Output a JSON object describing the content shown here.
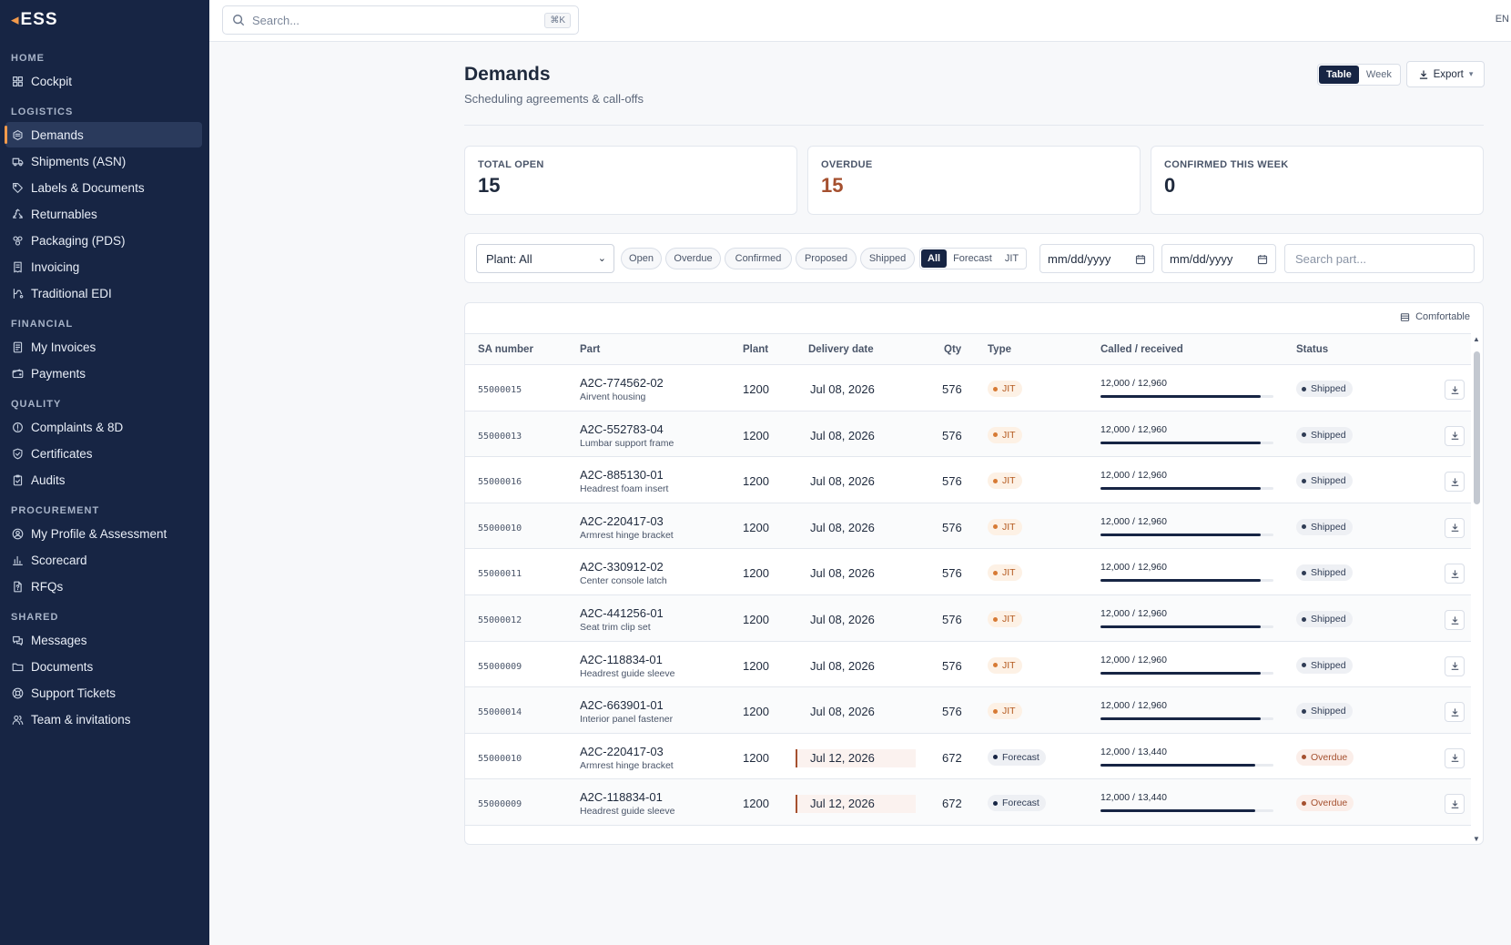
{
  "brand": {
    "logo_text": "ESS",
    "accent": "#f39a4b",
    "sidebar_bg": "#172544"
  },
  "topbar": {
    "search_placeholder": "Search...",
    "shortcut": "⌘K",
    "language": "EN"
  },
  "sidebar": {
    "sections": [
      {
        "label": "HOME",
        "items": [
          {
            "label": "Cockpit",
            "icon": "dashboard-icon"
          }
        ]
      },
      {
        "label": "LOGISTICS",
        "items": [
          {
            "label": "Demands",
            "icon": "demands-icon",
            "active": true
          },
          {
            "label": "Shipments (ASN)",
            "icon": "truck-icon"
          },
          {
            "label": "Labels & Documents",
            "icon": "tag-icon"
          },
          {
            "label": "Returnables",
            "icon": "recycle-icon"
          },
          {
            "label": "Packaging (PDS)",
            "icon": "package-icon"
          },
          {
            "label": "Invoicing",
            "icon": "receipt-icon"
          },
          {
            "label": "Traditional EDI",
            "icon": "edi-icon"
          }
        ]
      },
      {
        "label": "FINANCIAL",
        "items": [
          {
            "label": "My Invoices",
            "icon": "invoice-icon"
          },
          {
            "label": "Payments",
            "icon": "wallet-icon"
          }
        ]
      },
      {
        "label": "QUALITY",
        "items": [
          {
            "label": "Complaints & 8D",
            "icon": "alert-icon"
          },
          {
            "label": "Certificates",
            "icon": "shield-icon"
          },
          {
            "label": "Audits",
            "icon": "clipboard-icon"
          }
        ]
      },
      {
        "label": "PROCUREMENT",
        "items": [
          {
            "label": "My Profile & Assessment",
            "icon": "user-circle-icon"
          },
          {
            "label": "Scorecard",
            "icon": "bar-chart-icon"
          },
          {
            "label": "RFQs",
            "icon": "document-question-icon"
          }
        ]
      },
      {
        "label": "SHARED",
        "items": [
          {
            "label": "Messages",
            "icon": "messages-icon"
          },
          {
            "label": "Documents",
            "icon": "folder-icon"
          },
          {
            "label": "Support Tickets",
            "icon": "lifebuoy-icon"
          },
          {
            "label": "Team & invitations",
            "icon": "team-icon"
          }
        ]
      }
    ]
  },
  "page": {
    "title": "Demands",
    "subtitle": "Scheduling agreements & call-offs",
    "view_options": [
      "Table",
      "Week"
    ],
    "active_view": "Table",
    "export_label": "Export"
  },
  "kpis": [
    {
      "label": "TOTAL OPEN",
      "value": "15"
    },
    {
      "label": "OVERDUE",
      "value": "15"
    },
    {
      "label": "CONFIRMED THIS WEEK",
      "value": "0"
    }
  ],
  "filters": {
    "plant": "Plant: All",
    "status_chips": [
      "Open",
      "Overdue",
      "Confirmed",
      "Proposed",
      "Shipped"
    ],
    "type_options": [
      "All",
      "Forecast",
      "JIT"
    ],
    "active_type": "All",
    "date_from_placeholder": "mm/dd/yyyy",
    "date_to_placeholder": "mm/dd/yyyy",
    "part_search_placeholder": "Search part..."
  },
  "table": {
    "density_label": "Comfortable",
    "columns": [
      "SA number",
      "Part",
      "Plant",
      "Delivery date",
      "Qty",
      "Type",
      "Called / received",
      "Status"
    ],
    "rows": [
      {
        "sa": "55000015",
        "part": "A2C-774562-02",
        "desc": "Airvent housing",
        "plant": "1200",
        "date": "Jul 08, 2026",
        "qty": "576",
        "type": "JIT",
        "called": "12,000 / 12,960",
        "progress": 0.926,
        "status": "Shipped"
      },
      {
        "sa": "55000013",
        "part": "A2C-552783-04",
        "desc": "Lumbar support frame",
        "plant": "1200",
        "date": "Jul 08, 2026",
        "qty": "576",
        "type": "JIT",
        "called": "12,000 / 12,960",
        "progress": 0.926,
        "status": "Shipped"
      },
      {
        "sa": "55000016",
        "part": "A2C-885130-01",
        "desc": "Headrest foam insert",
        "plant": "1200",
        "date": "Jul 08, 2026",
        "qty": "576",
        "type": "JIT",
        "called": "12,000 / 12,960",
        "progress": 0.926,
        "status": "Shipped"
      },
      {
        "sa": "55000010",
        "part": "A2C-220417-03",
        "desc": "Armrest hinge bracket",
        "plant": "1200",
        "date": "Jul 08, 2026",
        "qty": "576",
        "type": "JIT",
        "called": "12,000 / 12,960",
        "progress": 0.926,
        "status": "Shipped"
      },
      {
        "sa": "55000011",
        "part": "A2C-330912-02",
        "desc": "Center console latch",
        "plant": "1200",
        "date": "Jul 08, 2026",
        "qty": "576",
        "type": "JIT",
        "called": "12,000 / 12,960",
        "progress": 0.926,
        "status": "Shipped"
      },
      {
        "sa": "55000012",
        "part": "A2C-441256-01",
        "desc": "Seat trim clip set",
        "plant": "1200",
        "date": "Jul 08, 2026",
        "qty": "576",
        "type": "JIT",
        "called": "12,000 / 12,960",
        "progress": 0.926,
        "status": "Shipped"
      },
      {
        "sa": "55000009",
        "part": "A2C-118834-01",
        "desc": "Headrest guide sleeve",
        "plant": "1200",
        "date": "Jul 08, 2026",
        "qty": "576",
        "type": "JIT",
        "called": "12,000 / 12,960",
        "progress": 0.926,
        "status": "Shipped"
      },
      {
        "sa": "55000014",
        "part": "A2C-663901-01",
        "desc": "Interior panel fastener",
        "plant": "1200",
        "date": "Jul 08, 2026",
        "qty": "576",
        "type": "JIT",
        "called": "12,000 / 12,960",
        "progress": 0.926,
        "status": "Shipped"
      },
      {
        "sa": "55000010",
        "part": "A2C-220417-03",
        "desc": "Armrest hinge bracket",
        "plant": "1200",
        "date": "Jul 12, 2026",
        "qty": "672",
        "type": "Forecast",
        "called": "12,000 / 13,440",
        "progress": 0.893,
        "status": "Overdue"
      },
      {
        "sa": "55000009",
        "part": "A2C-118834-01",
        "desc": "Headrest guide sleeve",
        "plant": "1200",
        "date": "Jul 12, 2026",
        "qty": "672",
        "type": "Forecast",
        "called": "12,000 / 13,440",
        "progress": 0.893,
        "status": "Overdue"
      }
    ]
  }
}
